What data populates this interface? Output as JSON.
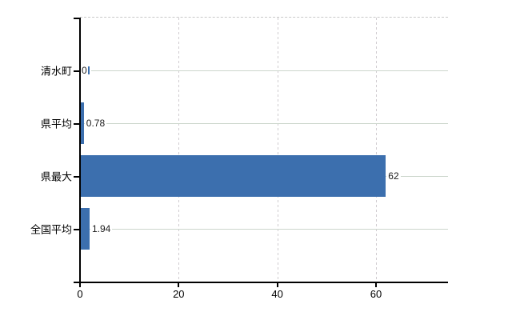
{
  "chart_data": {
    "type": "bar",
    "orientation": "horizontal",
    "title": "",
    "categories": [
      "清水町",
      "県平均",
      "県最大",
      "全国平均"
    ],
    "values": [
      0,
      0.78,
      62,
      1.94
    ],
    "value_labels": [
      "0",
      "0.78",
      "62",
      "1.94"
    ],
    "xticks": [
      0,
      20,
      40,
      60
    ],
    "xtick_labels": [
      "0",
      "20",
      "40",
      "60"
    ],
    "xlim": [
      0,
      74.6
    ],
    "grid": true,
    "legend": false,
    "bar_color": "#3c6fae",
    "h_grid_color": "#ccd6cc",
    "v_grid_color": "#d0ccd0",
    "axis_color": "#000000",
    "top_border_color": "#c8c8c8",
    "background": "#ffffff"
  }
}
